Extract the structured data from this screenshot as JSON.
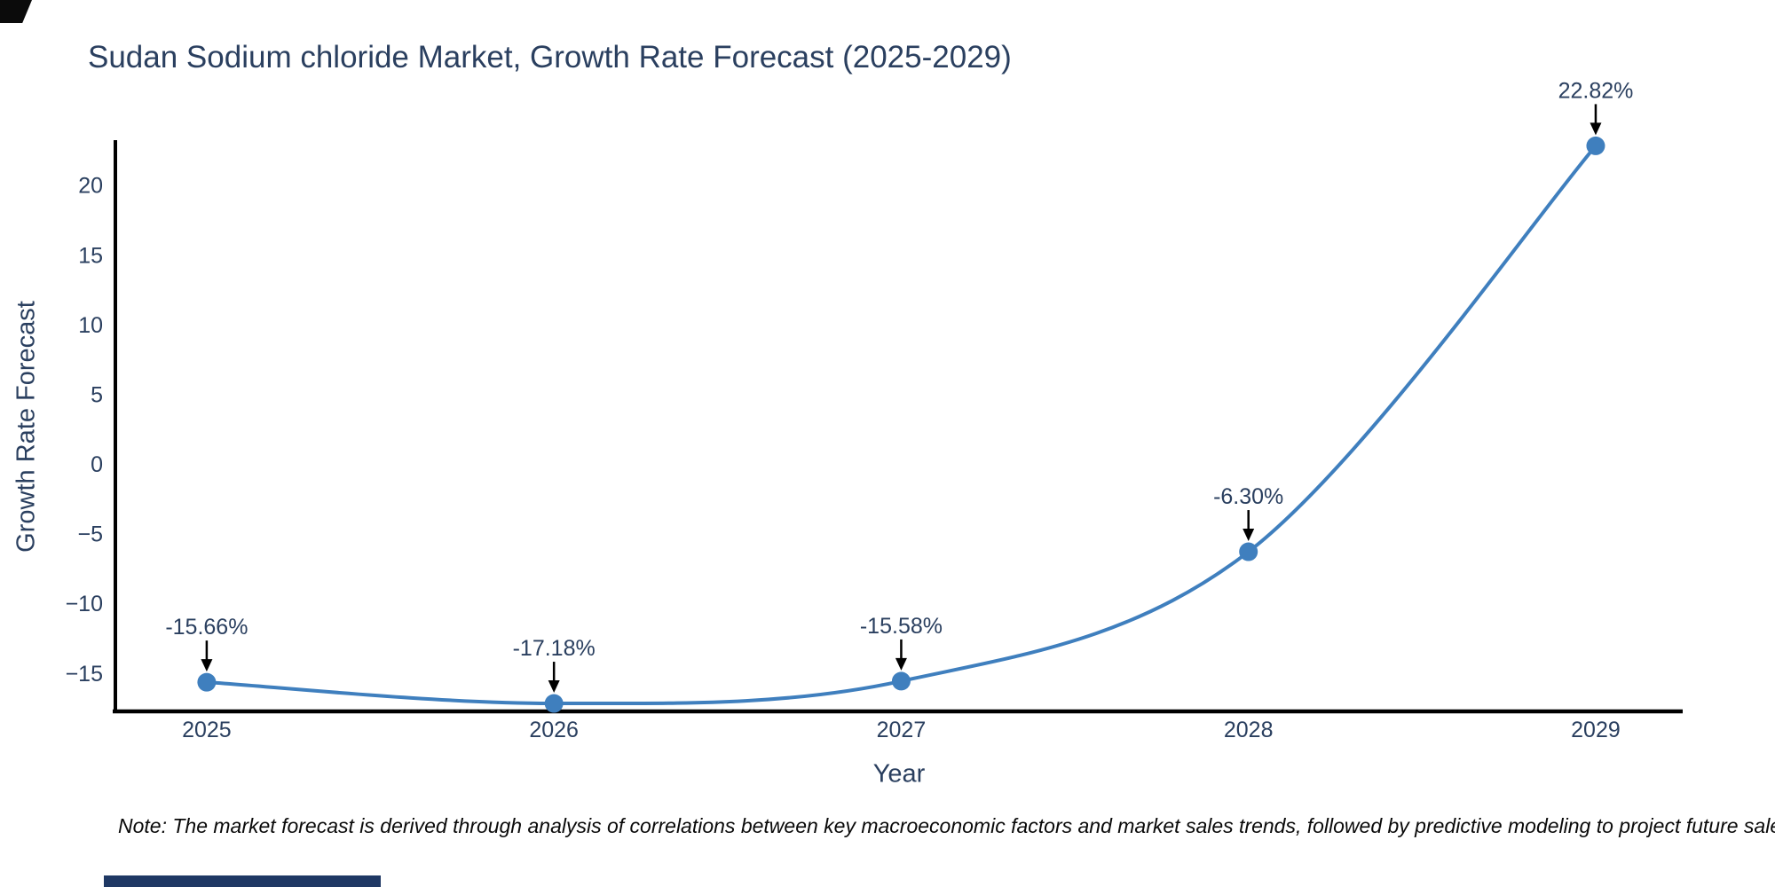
{
  "page": {
    "background": "#ffffff"
  },
  "chart_data": {
    "type": "line",
    "title": "Sudan Sodium chloride Market, Growth Rate Forecast (2025-2029)",
    "xlabel": "Year",
    "ylabel": "Growth Rate Forecast",
    "x": [
      2025,
      2026,
      2027,
      2028,
      2029
    ],
    "values": [
      -15.66,
      -17.18,
      -15.58,
      -6.3,
      22.82
    ],
    "point_labels": [
      "-15.66%",
      "-17.18%",
      "-15.58%",
      "-6.30%",
      "22.82%"
    ],
    "x_tick_labels": [
      "2025",
      "2026",
      "2027",
      "2028",
      "2029"
    ],
    "y_ticks": [
      20,
      15,
      10,
      5,
      0,
      -5,
      -10,
      -15
    ],
    "y_tick_labels": [
      "20",
      "15",
      "10",
      "5",
      "0",
      "−5",
      "−10",
      "−15"
    ],
    "xlim": [
      2024.737,
      2029.248
    ],
    "ylim": [
      -17.75,
      23.1
    ],
    "grid": false,
    "legend": false,
    "line_shape": "spline",
    "colors": {
      "line": "#3f7fbe",
      "marker": "#3f7fbe",
      "axis": "#000000",
      "text": "#2a3f5f",
      "arrow": "#000000"
    }
  },
  "note": {
    "text": "Note: The market forecast is derived through analysis of correlations between key macroeconomic factors and market sales trends, followed by predictive modeling to project future sales"
  },
  "artifacts": {
    "bottom_bar_color": "#1f3864"
  }
}
